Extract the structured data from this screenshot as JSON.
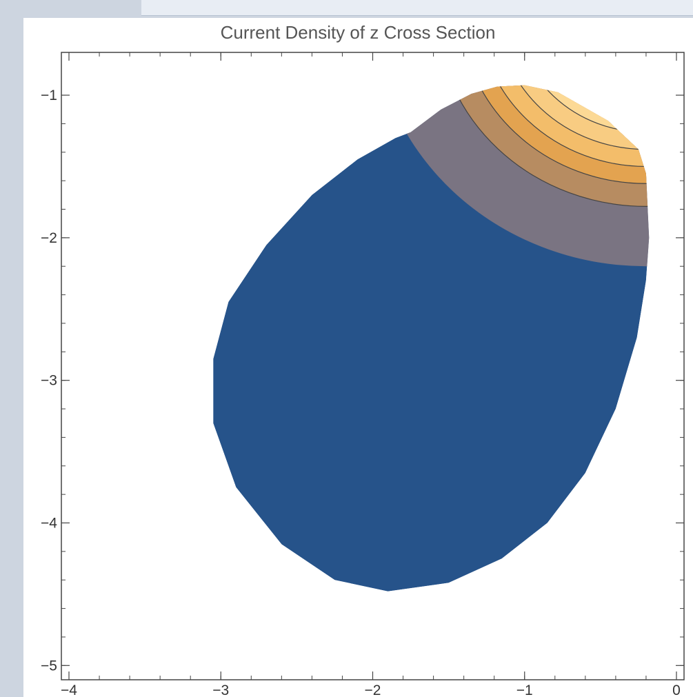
{
  "chart_data": {
    "type": "contour",
    "title": "Current Density of z Cross Section",
    "xlabel": "",
    "ylabel": "",
    "xlim": [
      -4.05,
      0.05
    ],
    "ylim": [
      -5.1,
      -0.7
    ],
    "x_ticks": [
      -4,
      -3,
      -2,
      -1,
      0
    ],
    "x_tick_labels": [
      "−4",
      "−3",
      "−2",
      "−1",
      "0"
    ],
    "y_ticks": [
      -1,
      -2,
      -3,
      -4,
      -5
    ],
    "y_tick_labels": [
      "−1",
      "−2",
      "−3",
      "−4",
      "−5"
    ],
    "grid": false,
    "legend": "none",
    "colors": {
      "level_0": "#26538a",
      "level_1": "#7a7482",
      "level_2": "#b78c61",
      "level_3": "#e3a350",
      "level_4": "#f3bd6a",
      "level_5": "#f8cc82",
      "level_6": "#fcd995",
      "level_7": "#ffe6a8",
      "contour_line": "#444444"
    },
    "region_outline": [
      [
        -1.75,
        -1.26
      ],
      [
        -1.55,
        -1.1
      ],
      [
        -1.35,
        -0.99
      ],
      [
        -1.18,
        -0.94
      ],
      [
        -1.0,
        -0.93
      ],
      [
        -0.78,
        -0.98
      ],
      [
        -0.45,
        -1.18
      ],
      [
        -0.25,
        -1.38
      ],
      [
        -0.2,
        -1.55
      ],
      [
        -0.18,
        -2.0
      ],
      [
        -0.2,
        -2.3
      ],
      [
        -0.26,
        -2.7
      ],
      [
        -0.4,
        -3.2
      ],
      [
        -0.6,
        -3.65
      ],
      [
        -0.85,
        -4.0
      ],
      [
        -1.15,
        -4.25
      ],
      [
        -1.5,
        -4.42
      ],
      [
        -1.9,
        -4.48
      ],
      [
        -2.25,
        -4.4
      ],
      [
        -2.6,
        -4.15
      ],
      [
        -2.9,
        -3.75
      ],
      [
        -3.05,
        -3.3
      ],
      [
        -3.05,
        -2.85
      ],
      [
        -2.95,
        -2.45
      ],
      [
        -2.7,
        -2.05
      ],
      [
        -2.4,
        -1.7
      ],
      [
        -2.1,
        -1.45
      ],
      [
        -1.85,
        -1.3
      ]
    ],
    "contour_center": [
      -0.2,
      -0.4
    ],
    "contour_radii": [
      1.8,
      1.38,
      1.22,
      1.1,
      0.98,
      0.86,
      0.74,
      0.62
    ]
  }
}
